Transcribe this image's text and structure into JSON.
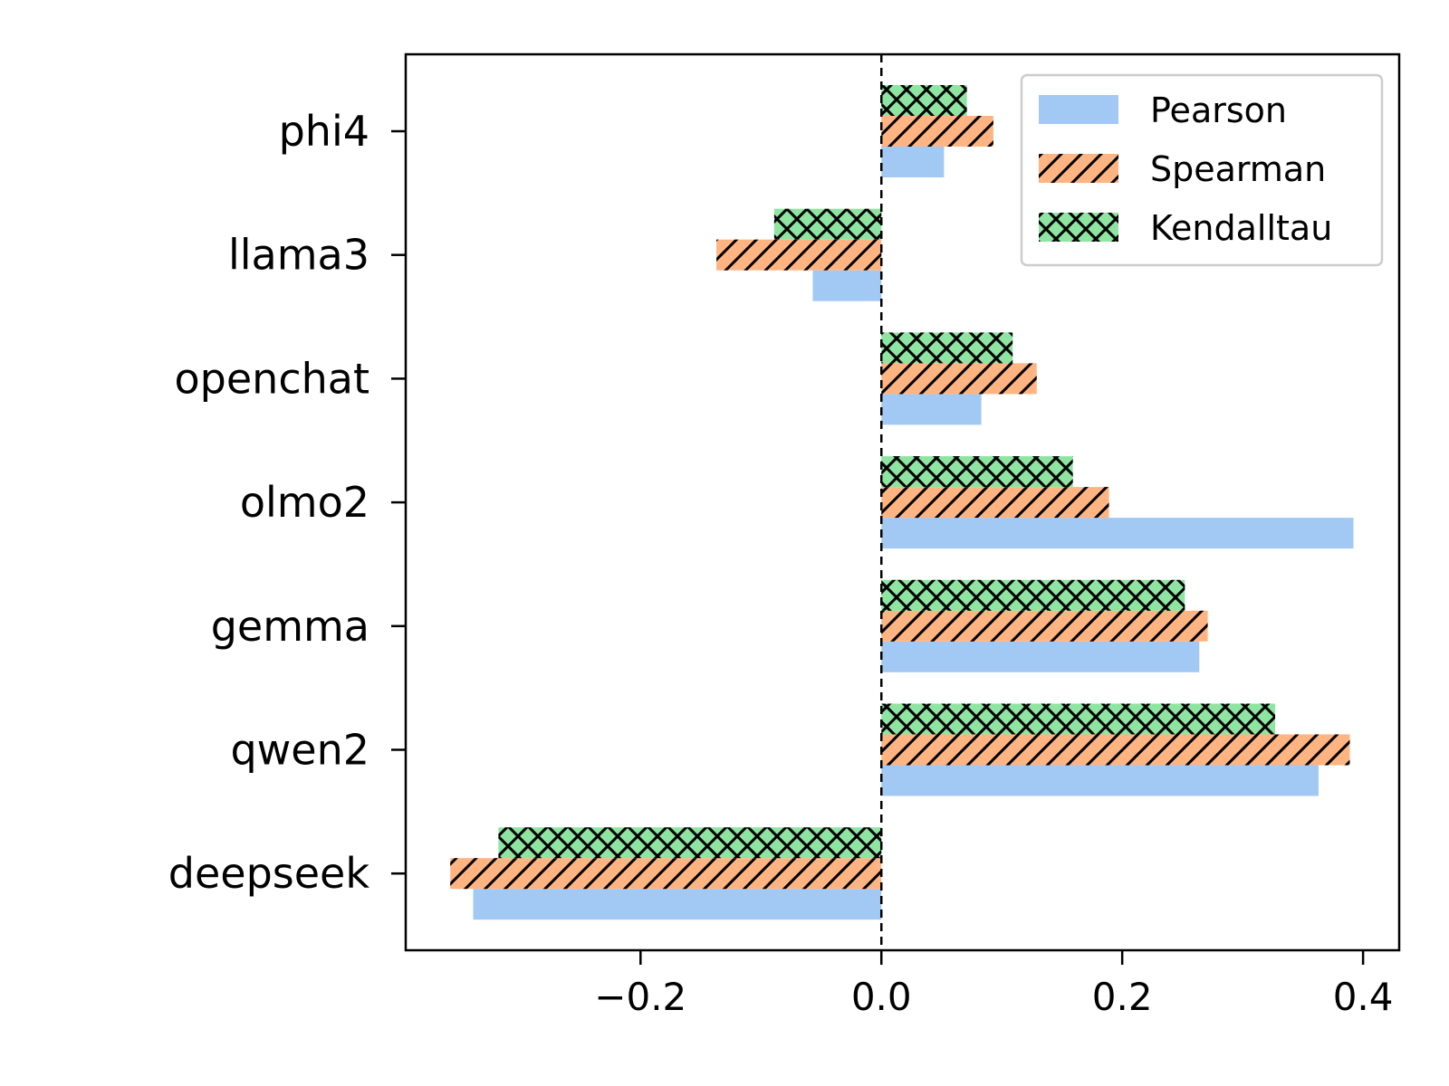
{
  "chart_data": {
    "type": "bar",
    "orientation": "horizontal",
    "categories": [
      "phi4",
      "llama3",
      "openchat",
      "olmo2",
      "gemma",
      "qwen2",
      "deepseek"
    ],
    "series": [
      {
        "name": "Pearson",
        "color": "#a1c9f4",
        "hatch": "none",
        "values": [
          0.052,
          -0.057,
          0.083,
          0.392,
          0.264,
          0.363,
          -0.339
        ]
      },
      {
        "name": "Spearman",
        "color": "#ffb482",
        "hatch": "diagonal",
        "values": [
          0.093,
          -0.137,
          0.129,
          0.189,
          0.271,
          0.389,
          -0.358
        ]
      },
      {
        "name": "Kendalltau",
        "color": "#8de5a1",
        "hatch": "cross",
        "values": [
          0.071,
          -0.089,
          0.109,
          0.159,
          0.252,
          0.327,
          -0.318
        ]
      }
    ],
    "xticks": [
      -0.2,
      0.0,
      0.2,
      0.4
    ],
    "xtick_labels": [
      "−0.2",
      "0.0",
      "0.2",
      "0.4"
    ],
    "xlim": [
      -0.395,
      0.43
    ],
    "reference_line": {
      "x": 0.0,
      "style": "dashed"
    },
    "xlabel": "",
    "ylabel": "",
    "title": "",
    "grid": false,
    "legend": {
      "position": "top-right"
    }
  }
}
